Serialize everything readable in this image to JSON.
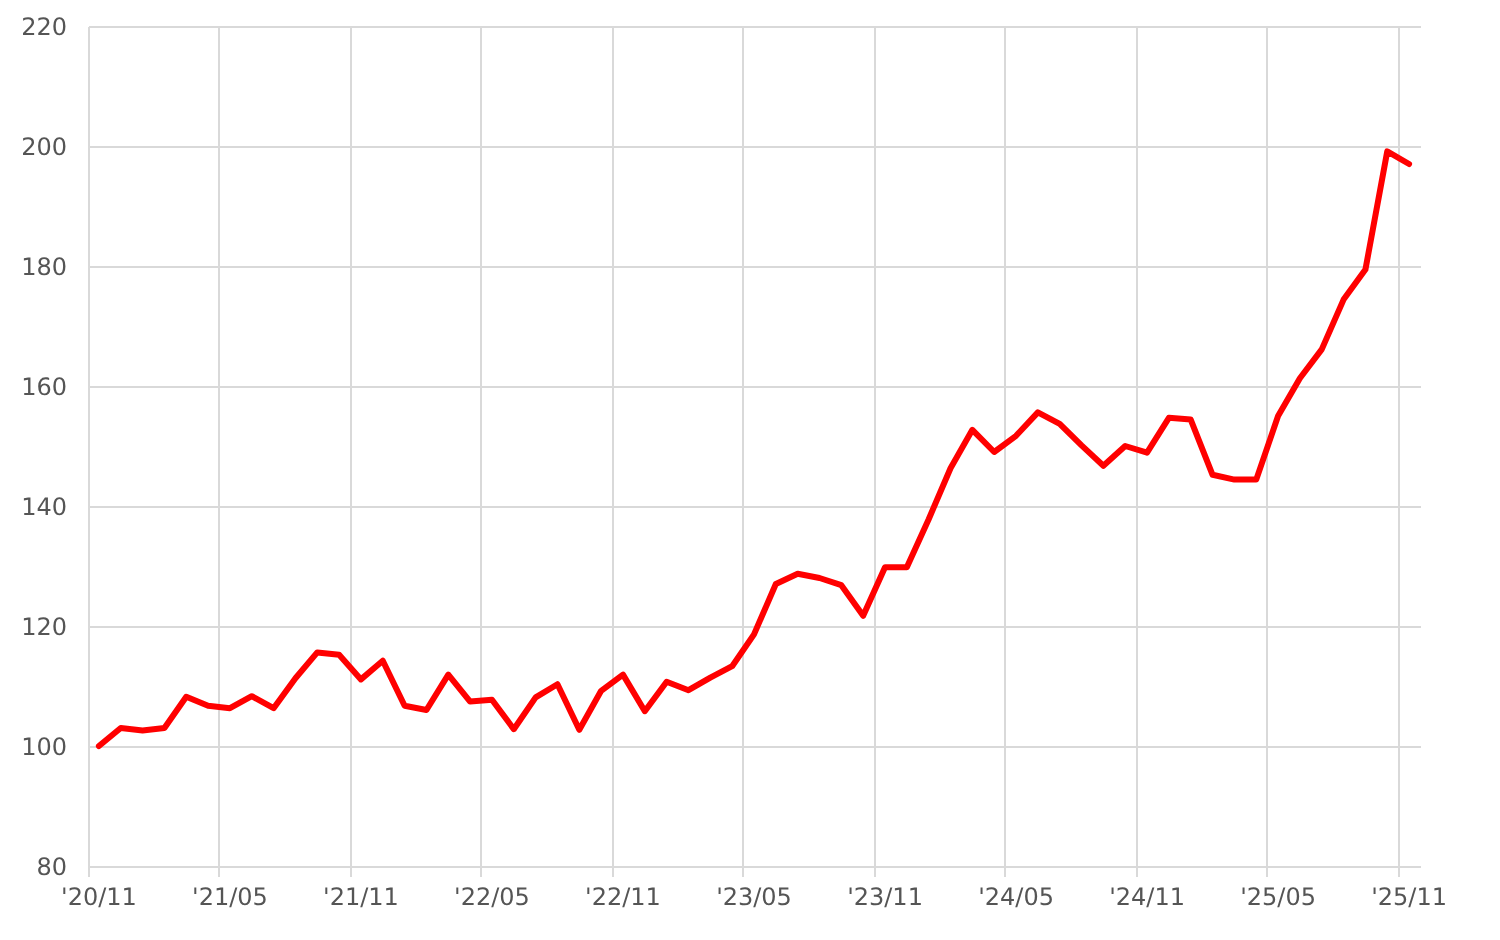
{
  "chart_data": {
    "type": "line",
    "categories": [
      "'20/11",
      null,
      null,
      null,
      null,
      null,
      "'21/05",
      null,
      null,
      null,
      null,
      null,
      "'21/11",
      null,
      null,
      null,
      null,
      null,
      "'22/05",
      null,
      null,
      null,
      null,
      null,
      "'22/11",
      null,
      null,
      null,
      null,
      null,
      "'23/05",
      null,
      null,
      null,
      null,
      null,
      "'23/11",
      null,
      null,
      null,
      null,
      null,
      "'24/05",
      null,
      null,
      null,
      null,
      null,
      "'24/11",
      null,
      null,
      null,
      null,
      null,
      "'25/05",
      null,
      null,
      null,
      null,
      null,
      "'25/11"
    ],
    "series": [
      {
        "color": "#ff0000",
        "values": [
          100.0,
          103.0,
          102.6,
          103.0,
          108.2,
          106.7,
          106.3,
          108.3,
          106.3,
          111.3,
          115.6,
          115.2,
          111.1,
          114.2,
          106.7,
          106.0,
          111.9,
          107.4,
          107.7,
          102.8,
          108.1,
          110.3,
          102.7,
          109.2,
          111.9,
          105.8,
          110.7,
          109.3,
          111.4,
          113.3,
          118.6,
          127.0,
          128.7,
          128.0,
          126.8,
          121.7,
          129.8,
          129.8,
          137.8,
          146.3,
          152.7,
          149.0,
          151.7,
          155.6,
          153.7,
          150.1,
          146.7,
          150.0,
          148.9,
          154.7,
          154.4,
          145.2,
          144.4,
          144.4,
          155.0,
          161.3,
          166.1,
          174.4,
          179.4,
          199.1,
          197.0
        ]
      }
    ],
    "ylim": [
      80,
      220
    ],
    "yticks": [
      80,
      100,
      120,
      140,
      160,
      180,
      200,
      220
    ],
    "grid": true
  }
}
